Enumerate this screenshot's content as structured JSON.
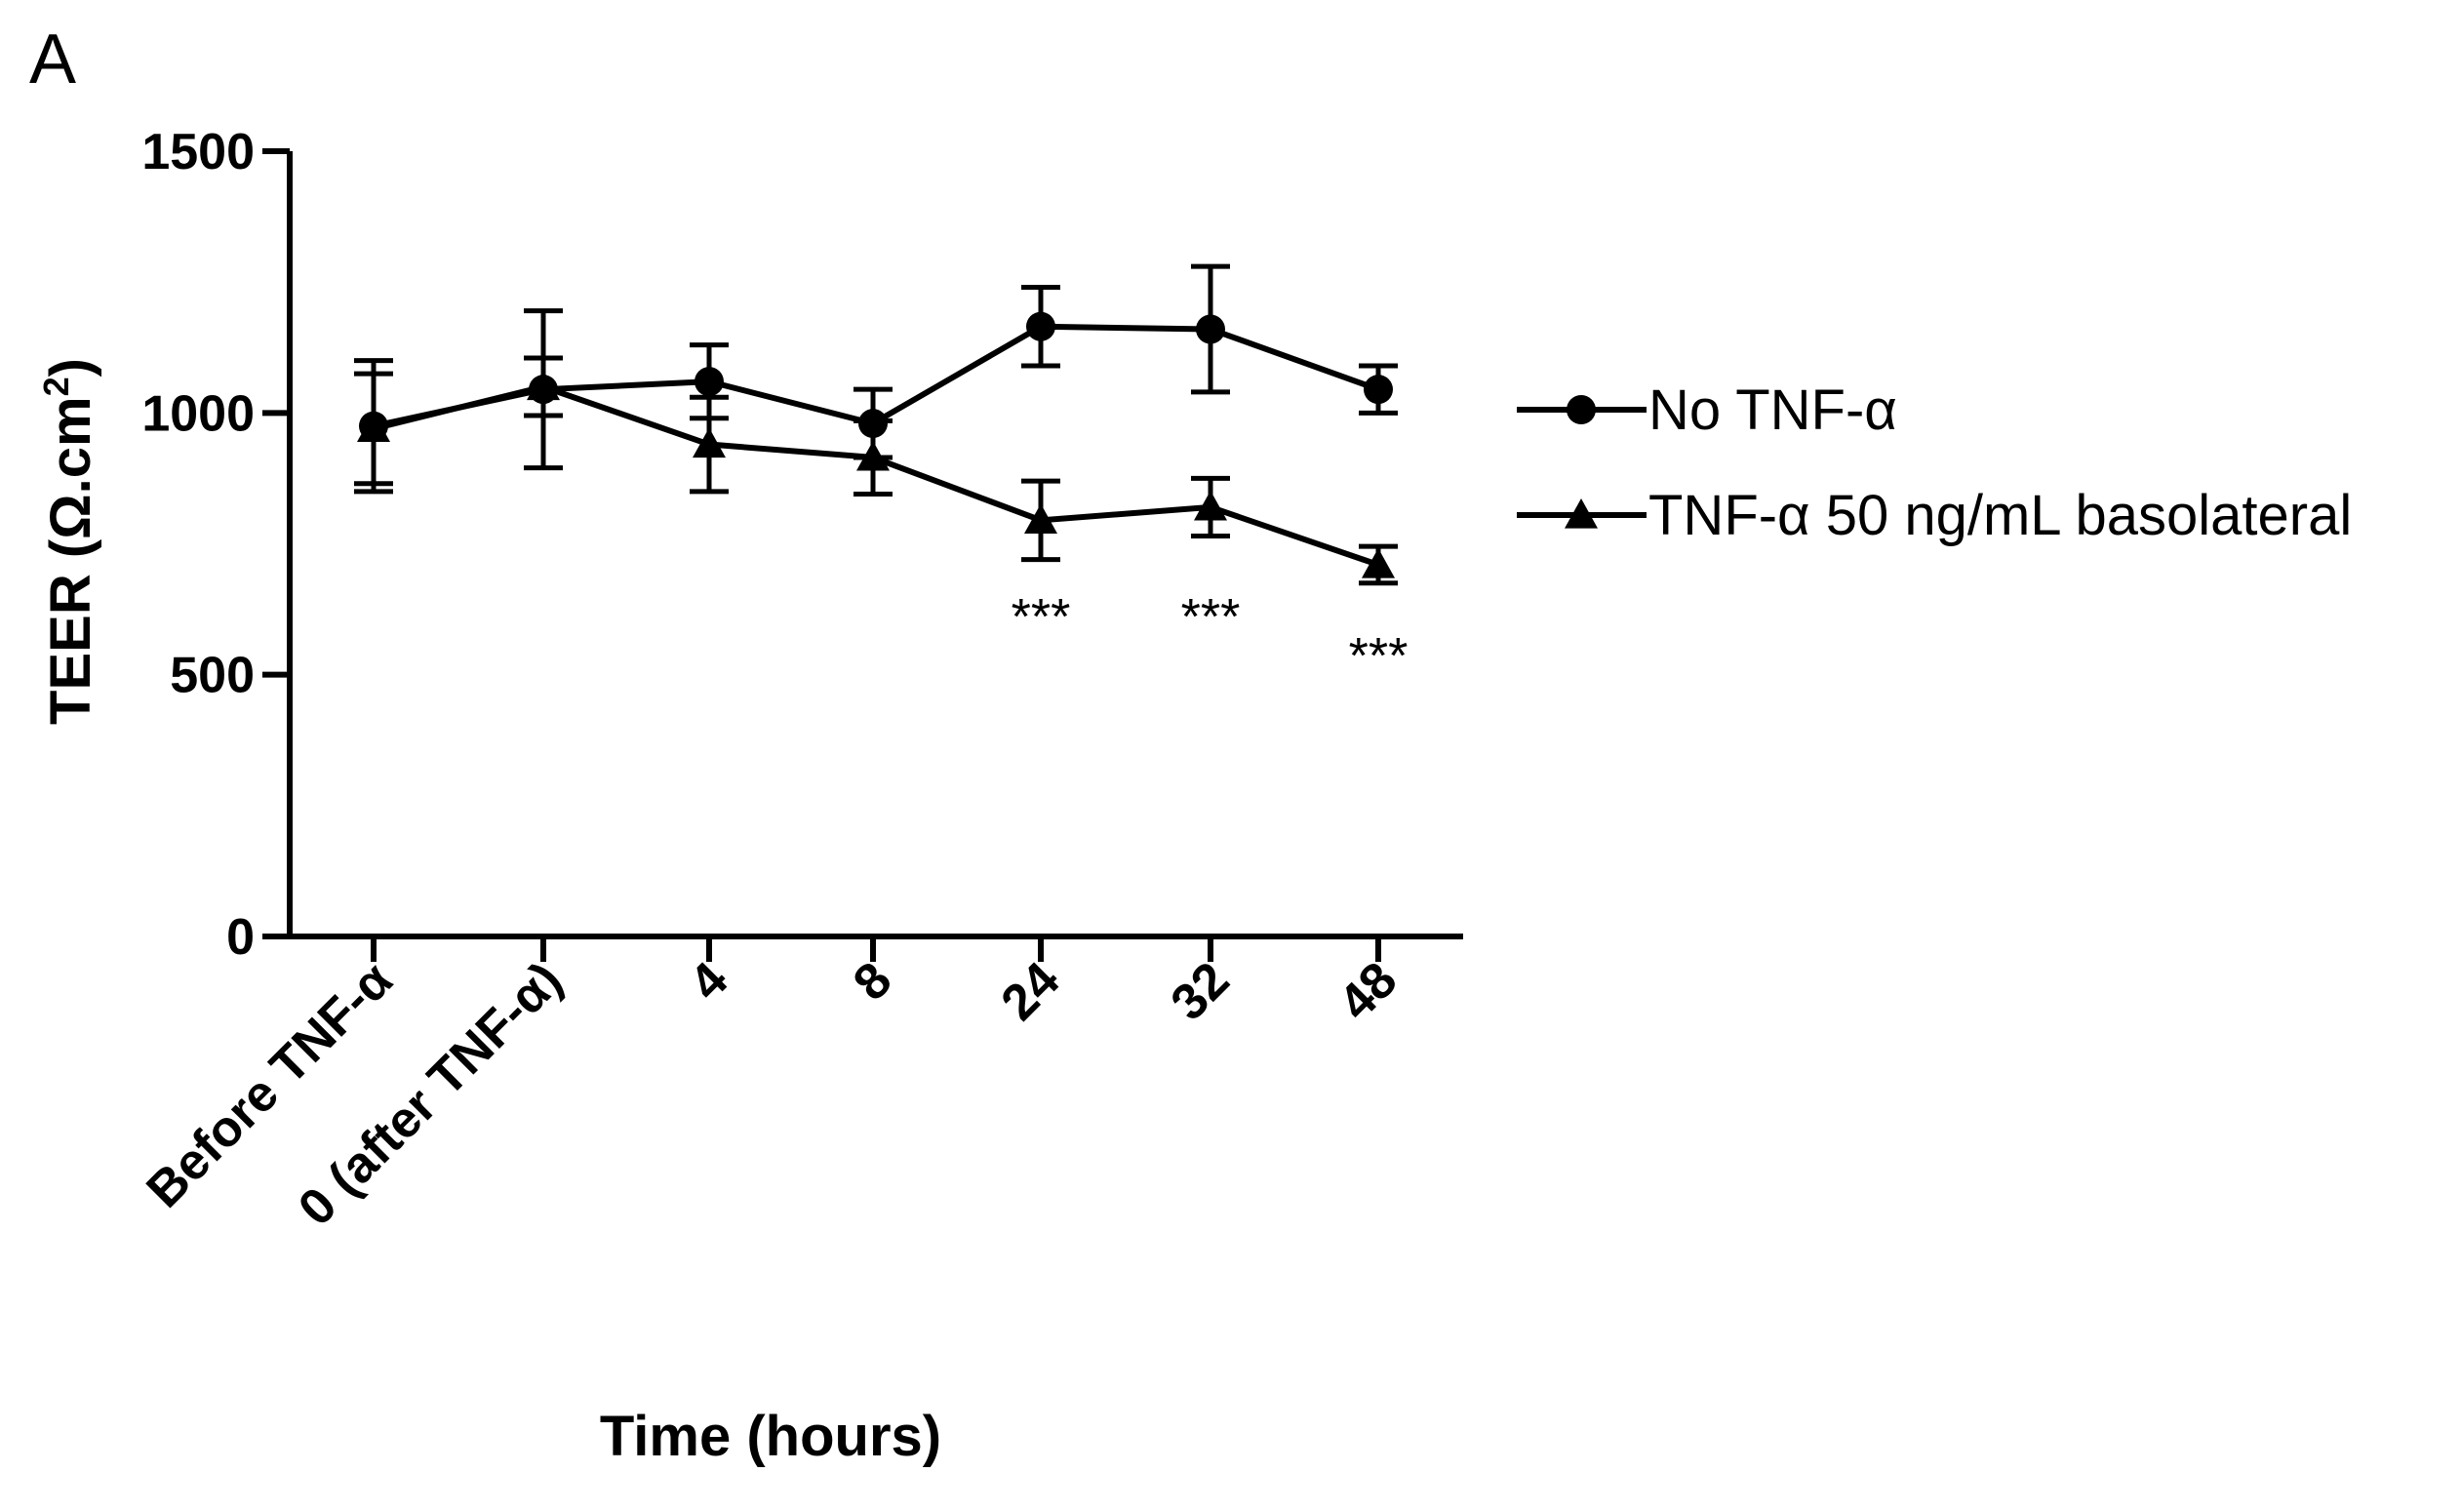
{
  "panel_label": "A",
  "chart_data": {
    "type": "line",
    "title": "",
    "xlabel": "Time (hours)",
    "ylabel_main": "TEER (Ω.cm",
    "ylabel_sup": "2",
    "ylabel_close": ")",
    "ylim": [
      0,
      1500
    ],
    "yticks": [
      0,
      500,
      1000,
      1500
    ],
    "ytick_labels": [
      "0",
      "500",
      "1000",
      "1500"
    ],
    "categories": [
      "Before TNF-α",
      "0 (after TNF-α)",
      "4",
      "8",
      "24",
      "32",
      "48"
    ],
    "series": [
      {
        "name": "No TNF-α",
        "marker": "circle",
        "values": [
          975,
          1045,
          1060,
          980,
          1165,
          1160,
          1045
        ],
        "errors": [
          125,
          150,
          70,
          65,
          75,
          120,
          45
        ]
      },
      {
        "name": "TNF-α 50 ng/mL basolateral",
        "marker": "triangle",
        "values": [
          970,
          1050,
          940,
          915,
          795,
          820,
          710
        ],
        "errors": [
          105,
          55,
          90,
          70,
          75,
          55,
          35
        ]
      }
    ],
    "annotations": [
      {
        "category_index": 4,
        "text": "***"
      },
      {
        "category_index": 5,
        "text": "***"
      },
      {
        "category_index": 6,
        "text": "***"
      }
    ],
    "legend_position": "right"
  }
}
